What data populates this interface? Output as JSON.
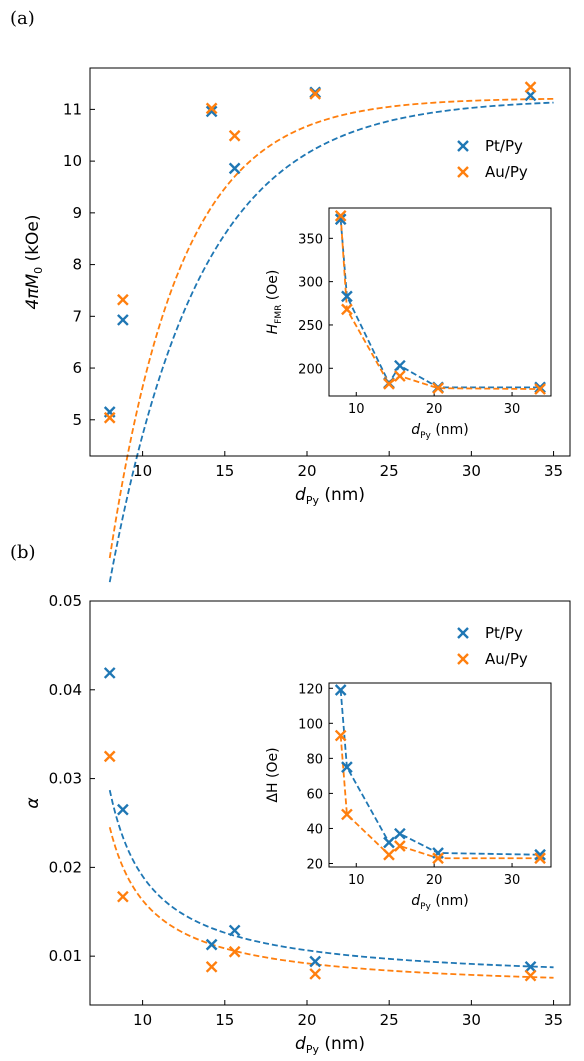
{
  "colors": {
    "pt": "#1f77b4",
    "au": "#ff7f0e",
    "axis": "#000000"
  },
  "chart_data": [
    {
      "id": "a-main",
      "panel_label": "(a)",
      "type": "scatter",
      "xlabel": "d",
      "xlabel_sub": "Py",
      "xlabel_unit": " (nm)",
      "ylabel": "4πM",
      "ylabel_sub": "0",
      "ylabel_unit": " (kOe)",
      "xlim": [
        6.8,
        36.0
      ],
      "ylim": [
        4.3,
        11.8
      ],
      "xticks": [
        10,
        15,
        20,
        25,
        30,
        35
      ],
      "yticks": [
        5,
        6,
        7,
        8,
        9,
        10,
        11
      ],
      "legend": {
        "position": "right",
        "entries": [
          "Pt/Py",
          "Au/Py"
        ]
      },
      "series": [
        {
          "name": "Pt/Py",
          "color": "#1f77b4",
          "points": [
            [
              8.0,
              5.15
            ],
            [
              8.8,
              6.93
            ],
            [
              14.2,
              10.96
            ],
            [
              15.6,
              9.86
            ],
            [
              20.5,
              11.33
            ],
            [
              33.6,
              11.27
            ]
          ],
          "fit": {
            "type": "saturation",
            "x_from": 8.0,
            "x_to": 35.0,
            "Ms": 11.2,
            "Ds": 5.5,
            "d0": 7.0
          }
        },
        {
          "name": "Au/Py",
          "color": "#ff7f0e",
          "points": [
            [
              8.0,
              5.04
            ],
            [
              8.8,
              7.32
            ],
            [
              14.2,
              11.02
            ],
            [
              15.6,
              10.49
            ],
            [
              20.5,
              11.3
            ],
            [
              33.6,
              11.43
            ]
          ],
          "fit": {
            "type": "saturation",
            "x_from": 8.0,
            "x_to": 35.0,
            "Ms": 11.22,
            "Ds": 4.3,
            "d0": 7.0
          }
        }
      ]
    },
    {
      "id": "a-inset",
      "type": "line",
      "xlabel": "d",
      "xlabel_sub": "Py",
      "xlabel_unit": " (nm)",
      "ylabel": "H",
      "ylabel_sub": "FMR",
      "ylabel_unit": " (Oe)",
      "xlim": [
        6.5,
        35.0
      ],
      "ylim": [
        168,
        385
      ],
      "xticks": [
        10,
        20,
        30
      ],
      "yticks": [
        200,
        250,
        300,
        350
      ],
      "series": [
        {
          "name": "Pt/Py",
          "color": "#1f77b4",
          "points": [
            [
              8.0,
              372
            ],
            [
              8.8,
              283
            ],
            [
              14.2,
              183
            ],
            [
              15.6,
              203
            ],
            [
              20.5,
              178
            ],
            [
              33.6,
              178
            ]
          ]
        },
        {
          "name": "Au/Py",
          "color": "#ff7f0e",
          "points": [
            [
              8.0,
              376
            ],
            [
              8.8,
              268
            ],
            [
              14.2,
              182
            ],
            [
              15.6,
              191
            ],
            [
              20.5,
              177
            ],
            [
              33.6,
              176
            ]
          ]
        }
      ]
    },
    {
      "id": "b-main",
      "panel_label": "(b)",
      "type": "scatter",
      "xlabel": "d",
      "xlabel_sub": "Py",
      "xlabel_unit": " (nm)",
      "ylabel": "α",
      "ylabel_sub": "",
      "ylabel_unit": "",
      "xlim": [
        6.8,
        36.0
      ],
      "ylim": [
        0.0045,
        0.05
      ],
      "xticks": [
        10,
        15,
        20,
        25,
        30,
        35
      ],
      "yticks": [
        0.01,
        0.02,
        0.03,
        0.04,
        0.05
      ],
      "ytick_labels": [
        "0.01",
        "0.02",
        "0.03",
        "0.04",
        "0.05"
      ],
      "legend": {
        "position": "top-right",
        "entries": [
          "Pt/Py",
          "Au/Py"
        ]
      },
      "series": [
        {
          "name": "Pt/Py",
          "color": "#1f77b4",
          "points": [
            [
              8.0,
              0.0419
            ],
            [
              8.8,
              0.0265
            ],
            [
              14.2,
              0.0113
            ],
            [
              15.6,
              0.0129
            ],
            [
              20.5,
              0.0094
            ],
            [
              33.6,
              0.0088
            ]
          ],
          "fit": {
            "type": "inverse",
            "x_from": 8.0,
            "x_to": 35.0,
            "a0": 0.0069,
            "b": 0.0545,
            "d0": 5.5
          }
        },
        {
          "name": "Au/Py",
          "color": "#ff7f0e",
          "points": [
            [
              8.0,
              0.0325
            ],
            [
              8.8,
              0.0167
            ],
            [
              14.2,
              0.0088
            ],
            [
              15.6,
              0.0105
            ],
            [
              20.5,
              0.008
            ],
            [
              33.6,
              0.0078
            ]
          ],
          "fit": {
            "type": "inverse",
            "x_from": 8.0,
            "x_to": 35.0,
            "a0": 0.006,
            "b": 0.0463,
            "d0": 5.5
          }
        }
      ]
    },
    {
      "id": "b-inset",
      "type": "line",
      "xlabel": "d",
      "xlabel_sub": "Py",
      "xlabel_unit": " (nm)",
      "ylabel": "ΔH",
      "ylabel_sub": "",
      "ylabel_unit": " (Oe)",
      "xlim": [
        6.5,
        35.0
      ],
      "ylim": [
        18,
        123
      ],
      "xticks": [
        10,
        20,
        30
      ],
      "yticks": [
        20,
        40,
        60,
        80,
        100,
        120
      ],
      "series": [
        {
          "name": "Pt/Py",
          "color": "#1f77b4",
          "points": [
            [
              8.0,
              119
            ],
            [
              8.8,
              75
            ],
            [
              14.2,
              32
            ],
            [
              15.6,
              37
            ],
            [
              20.5,
              26
            ],
            [
              33.6,
              25
            ]
          ]
        },
        {
          "name": "Au/Py",
          "color": "#ff7f0e",
          "points": [
            [
              8.0,
              93
            ],
            [
              8.8,
              48
            ],
            [
              14.2,
              25
            ],
            [
              15.6,
              30
            ],
            [
              20.5,
              23
            ],
            [
              33.6,
              23
            ]
          ]
        }
      ]
    }
  ]
}
